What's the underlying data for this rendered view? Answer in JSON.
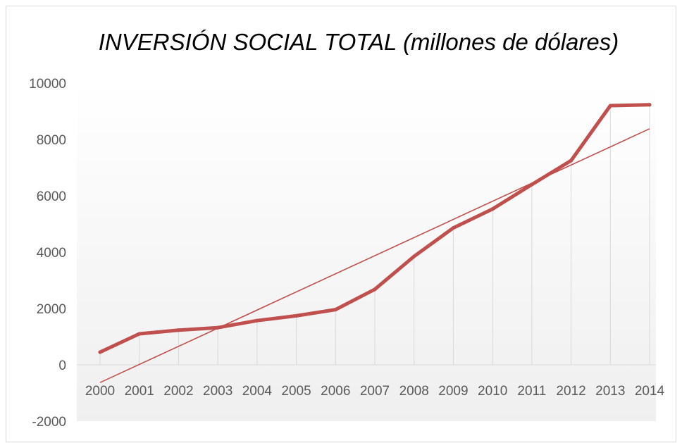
{
  "chart_data": {
    "type": "line",
    "title": "INVERSIÓN SOCIAL TOTAL (millones de dólares)",
    "xlabel": "",
    "ylabel": "",
    "categories": [
      "2000",
      "2001",
      "2002",
      "2003",
      "2004",
      "2005",
      "2006",
      "2007",
      "2008",
      "2009",
      "2010",
      "2011",
      "2012",
      "2013",
      "2014"
    ],
    "series": [
      {
        "values": [
          450,
          1100,
          1230,
          1320,
          1570,
          1740,
          1960,
          2680,
          3850,
          4860,
          5530,
          6400,
          7250,
          9200,
          9230
        ]
      }
    ],
    "trendline": {
      "type": "linear",
      "start_value": -630,
      "end_value": 8380
    },
    "ylim": [
      -2000,
      10000
    ],
    "yticks": [
      "10000",
      "8000",
      "6000",
      "4000",
      "2000",
      "0",
      "-2000"
    ],
    "grid": "vertical",
    "legend": "none",
    "colors": {
      "series": "#c0504d",
      "trendline": "#c0504d",
      "grid": "#d9d9d9",
      "axis": "#d9d9d9",
      "tick_text": "#595959",
      "plot_gradient_top": "#ffffff",
      "plot_gradient_bottom": "#f2f2f2"
    }
  }
}
